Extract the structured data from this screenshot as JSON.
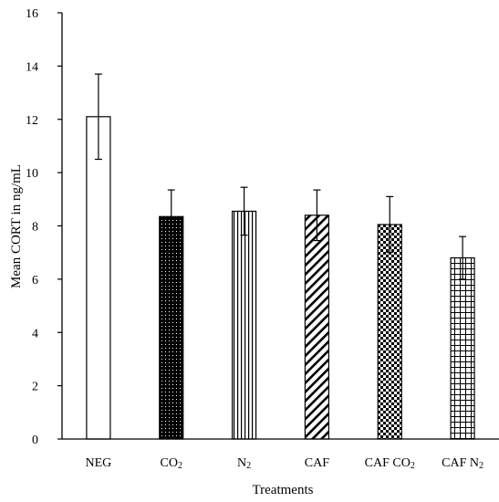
{
  "chart_data": {
    "type": "bar",
    "title": "",
    "xlabel": "Treatments",
    "ylabel": "Mean CORT in ng/mL",
    "ylim": [
      0,
      16
    ],
    "yticks": [
      "0",
      "2",
      "4",
      "6",
      "8",
      "10",
      "12",
      "14",
      "16"
    ],
    "grid": false,
    "categories": [
      {
        "base": "NEG",
        "sub": ""
      },
      {
        "base": "CO",
        "sub": "2"
      },
      {
        "base": "N",
        "sub": "2"
      },
      {
        "base": "CAF",
        "sub": ""
      },
      {
        "base": "CAF CO",
        "sub": "2"
      },
      {
        "base": "CAF N",
        "sub": "2"
      }
    ],
    "values": [
      12.1,
      8.35,
      8.55,
      8.4,
      8.05,
      6.8
    ],
    "error": [
      1.6,
      1.0,
      0.9,
      0.95,
      1.05,
      0.8
    ],
    "patterns": [
      "solid-white",
      "dots",
      "vertical-lines",
      "diagonal-lines",
      "checker",
      "grid"
    ],
    "colors": {
      "axis": "#000000",
      "fill": "#ffffff",
      "pattern": "#000000"
    }
  }
}
